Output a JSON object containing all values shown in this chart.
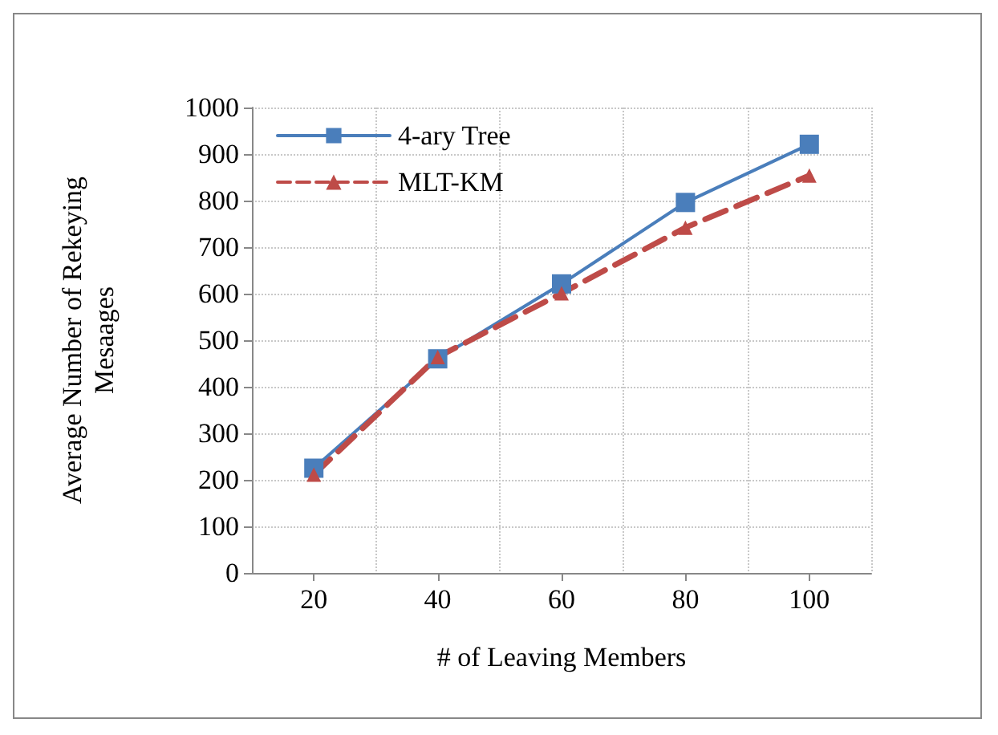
{
  "chart_data": {
    "type": "line",
    "xlabel": "# of Leaving Members",
    "ylabel": "Average Number of Rekeying\nMesaages",
    "categories": [
      "20",
      "40",
      "60",
      "80",
      "100"
    ],
    "series": [
      {
        "name": "4-ary Tree",
        "color": "#4a7ebb",
        "values": [
          225,
          460,
          621,
          796,
          921
        ],
        "marker": "square",
        "line_style": "solid"
      },
      {
        "name": "MLT-KM",
        "color": "#be4b48",
        "values": [
          211,
          464,
          601,
          742,
          854
        ],
        "marker": "triangle",
        "line_style": "dashed"
      }
    ],
    "ylim": [
      0,
      1000
    ],
    "yticks": [
      0,
      100,
      200,
      300,
      400,
      500,
      600,
      700,
      800,
      900,
      1000
    ],
    "grid": true,
    "legend": "top left"
  }
}
